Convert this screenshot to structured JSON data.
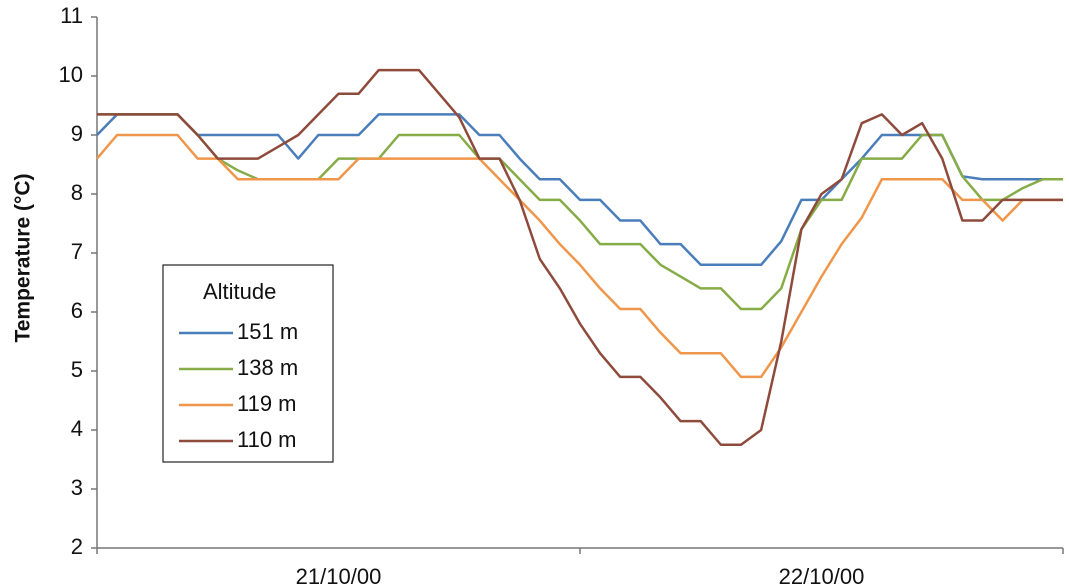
{
  "chart_data": {
    "type": "line",
    "ylabel": "Temperature (°C)",
    "legend_title": "Altitude",
    "legend_position": "lower left",
    "x": [
      0,
      1,
      2,
      3,
      4,
      5,
      6,
      7,
      8,
      9,
      10,
      11,
      12,
      13,
      14,
      15,
      16,
      17,
      18,
      19,
      20,
      21,
      22,
      23,
      24,
      25,
      26,
      27,
      28,
      29,
      30,
      31,
      32,
      33,
      34,
      35,
      36,
      37,
      38,
      39,
      40,
      41,
      42,
      43,
      44,
      45,
      46,
      47,
      48
    ],
    "xlim": [
      0,
      48
    ],
    "xticks": [
      0,
      24,
      48
    ],
    "xtick_labels": [
      {
        "value": 12,
        "label": "21/10/00"
      },
      {
        "value": 36,
        "label": "22/10/00"
      }
    ],
    "ylim": [
      2,
      11
    ],
    "yticks": [
      2,
      3,
      4,
      5,
      6,
      7,
      8,
      9,
      10,
      11
    ],
    "series": [
      {
        "name": "151 m",
        "color": "#4a7ebb",
        "values": [
          9.0,
          9.35,
          9.35,
          9.35,
          9.35,
          9.0,
          9.0,
          9.0,
          9.0,
          9.0,
          8.6,
          9.0,
          9.0,
          9.0,
          9.35,
          9.35,
          9.35,
          9.35,
          9.35,
          9.0,
          9.0,
          8.6,
          8.25,
          8.25,
          7.9,
          7.9,
          7.55,
          7.55,
          7.15,
          7.15,
          6.8,
          6.8,
          6.8,
          6.8,
          7.2,
          7.9,
          7.9,
          8.25,
          8.6,
          9.0,
          9.0,
          9.0,
          9.0,
          8.3,
          8.25,
          8.25,
          8.25,
          8.25,
          8.25
        ]
      },
      {
        "name": "138 m",
        "color": "#86ac47",
        "values": [
          9.35,
          9.35,
          9.35,
          9.35,
          9.35,
          9.0,
          8.6,
          8.4,
          8.25,
          8.25,
          8.25,
          8.25,
          8.6,
          8.6,
          8.6,
          9.0,
          9.0,
          9.0,
          9.0,
          8.6,
          8.6,
          8.25,
          7.9,
          7.9,
          7.55,
          7.15,
          7.15,
          7.15,
          6.8,
          6.6,
          6.4,
          6.4,
          6.05,
          6.05,
          6.4,
          7.4,
          7.9,
          7.9,
          8.6,
          8.6,
          8.6,
          9.0,
          9.0,
          8.3,
          7.9,
          7.9,
          8.1,
          8.25,
          8.25
        ]
      },
      {
        "name": "119 m",
        "color": "#f0964a",
        "values": [
          8.6,
          9.0,
          9.0,
          9.0,
          9.0,
          8.6,
          8.6,
          8.25,
          8.25,
          8.25,
          8.25,
          8.25,
          8.25,
          8.6,
          8.6,
          8.6,
          8.6,
          8.6,
          8.6,
          8.6,
          8.25,
          7.9,
          7.55,
          7.15,
          6.8,
          6.4,
          6.05,
          6.05,
          5.65,
          5.3,
          5.3,
          5.3,
          4.9,
          4.9,
          5.4,
          6.0,
          6.6,
          7.15,
          7.6,
          8.25,
          8.25,
          8.25,
          8.25,
          7.9,
          7.9,
          7.55,
          7.9,
          7.9,
          7.9
        ]
      },
      {
        "name": "110 m",
        "color": "#8e4b3c",
        "values": [
          9.35,
          9.35,
          9.35,
          9.35,
          9.35,
          9.0,
          8.6,
          8.6,
          8.6,
          8.8,
          9.0,
          9.35,
          9.7,
          9.7,
          10.1,
          10.1,
          10.1,
          9.7,
          9.3,
          8.6,
          8.6,
          7.9,
          6.9,
          6.4,
          5.8,
          5.3,
          4.9,
          4.9,
          4.55,
          4.15,
          4.15,
          3.75,
          3.75,
          4.0,
          5.5,
          7.4,
          8.0,
          8.25,
          9.2,
          9.35,
          9.0,
          9.2,
          8.6,
          7.55,
          7.55,
          7.9,
          7.9,
          7.9,
          7.9
        ]
      }
    ]
  }
}
